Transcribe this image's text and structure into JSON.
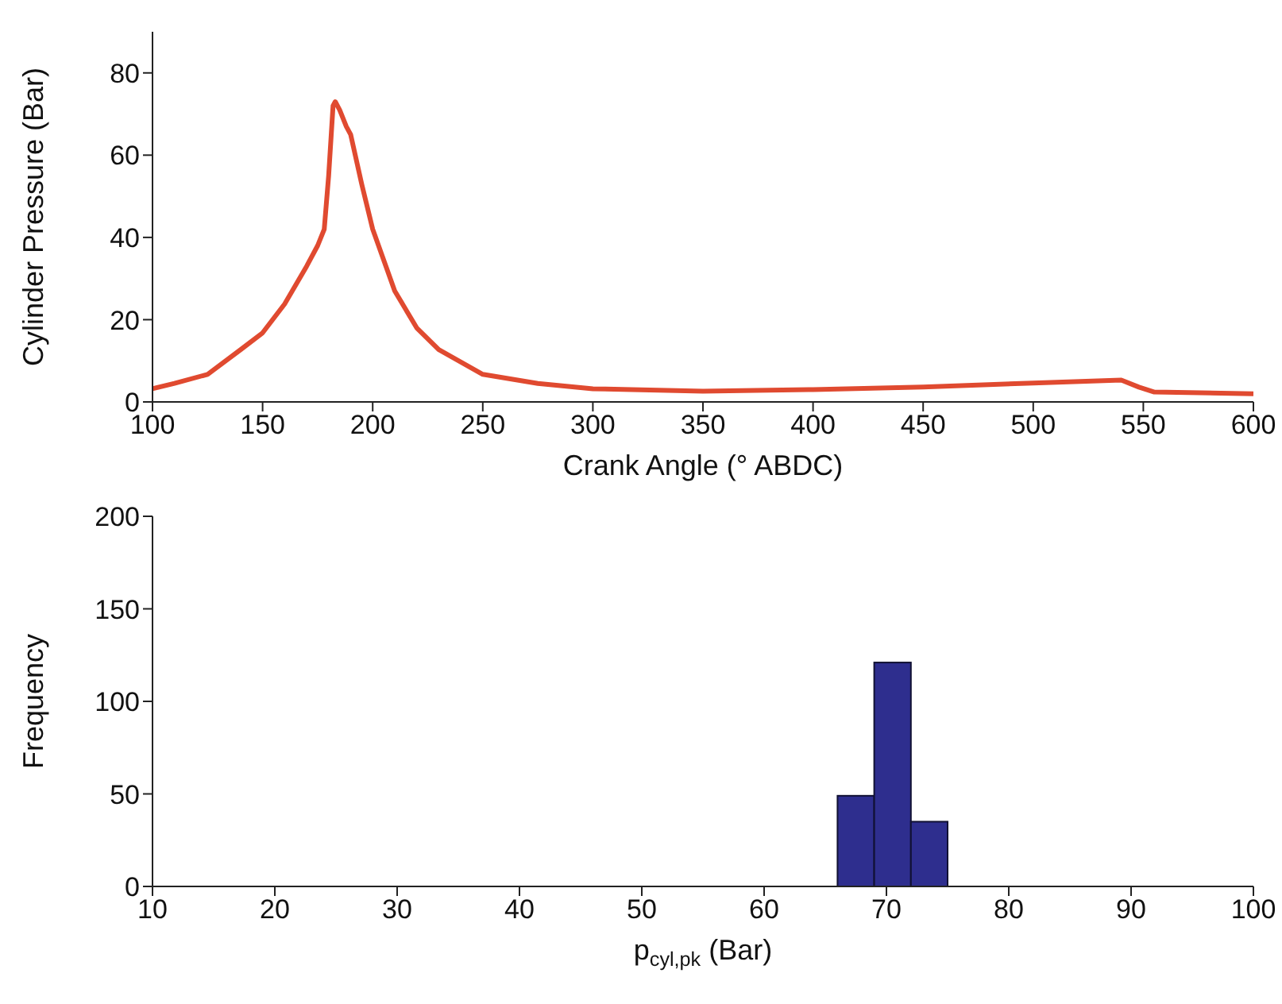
{
  "chart_data": [
    {
      "type": "line",
      "xlabel": "Crank Angle (° ABDC)",
      "ylabel": "Cylinder Pressure (Bar)",
      "xlim": [
        100,
        600
      ],
      "xticks": [
        100,
        150,
        200,
        250,
        300,
        350,
        400,
        450,
        500,
        550,
        600
      ],
      "ylim": [
        0,
        90
      ],
      "yticks": [
        0,
        20,
        40,
        60,
        80
      ],
      "grid": false,
      "legend": false,
      "marker": "none",
      "line_style": "solid",
      "series": [
        {
          "color": "#e04a30",
          "x": [
            100,
            110,
            125,
            140,
            150,
            160,
            170,
            175,
            178,
            180,
            182,
            183,
            185,
            188,
            190,
            195,
            200,
            210,
            220,
            230,
            250,
            275,
            300,
            350,
            400,
            450,
            500,
            540,
            548,
            555,
            600
          ],
          "values": [
            3.2,
            4.5,
            6.7,
            12.7,
            16.8,
            23.8,
            33,
            38,
            42,
            55,
            72,
            73,
            71,
            67,
            65,
            53,
            42,
            27,
            18,
            12.7,
            6.7,
            4.5,
            3.2,
            2.6,
            3.0,
            3.6,
            4.6,
            5.3,
            3.6,
            2.4,
            2.0
          ]
        }
      ]
    },
    {
      "type": "histogram",
      "xlabel": "p$_{cyl,pk}$ (Bar)",
      "ylabel": "Frequency",
      "xlim": [
        10,
        100
      ],
      "xticks": [
        10,
        20,
        30,
        40,
        50,
        60,
        70,
        80,
        90,
        100
      ],
      "ylim": [
        0,
        200
      ],
      "yticks": [
        0,
        50,
        100,
        150,
        200
      ],
      "grid": false,
      "legend": false,
      "color": "#2e2e8e",
      "bins": [
        66,
        69,
        72,
        75
      ],
      "values": [
        49,
        121,
        35
      ]
    }
  ]
}
